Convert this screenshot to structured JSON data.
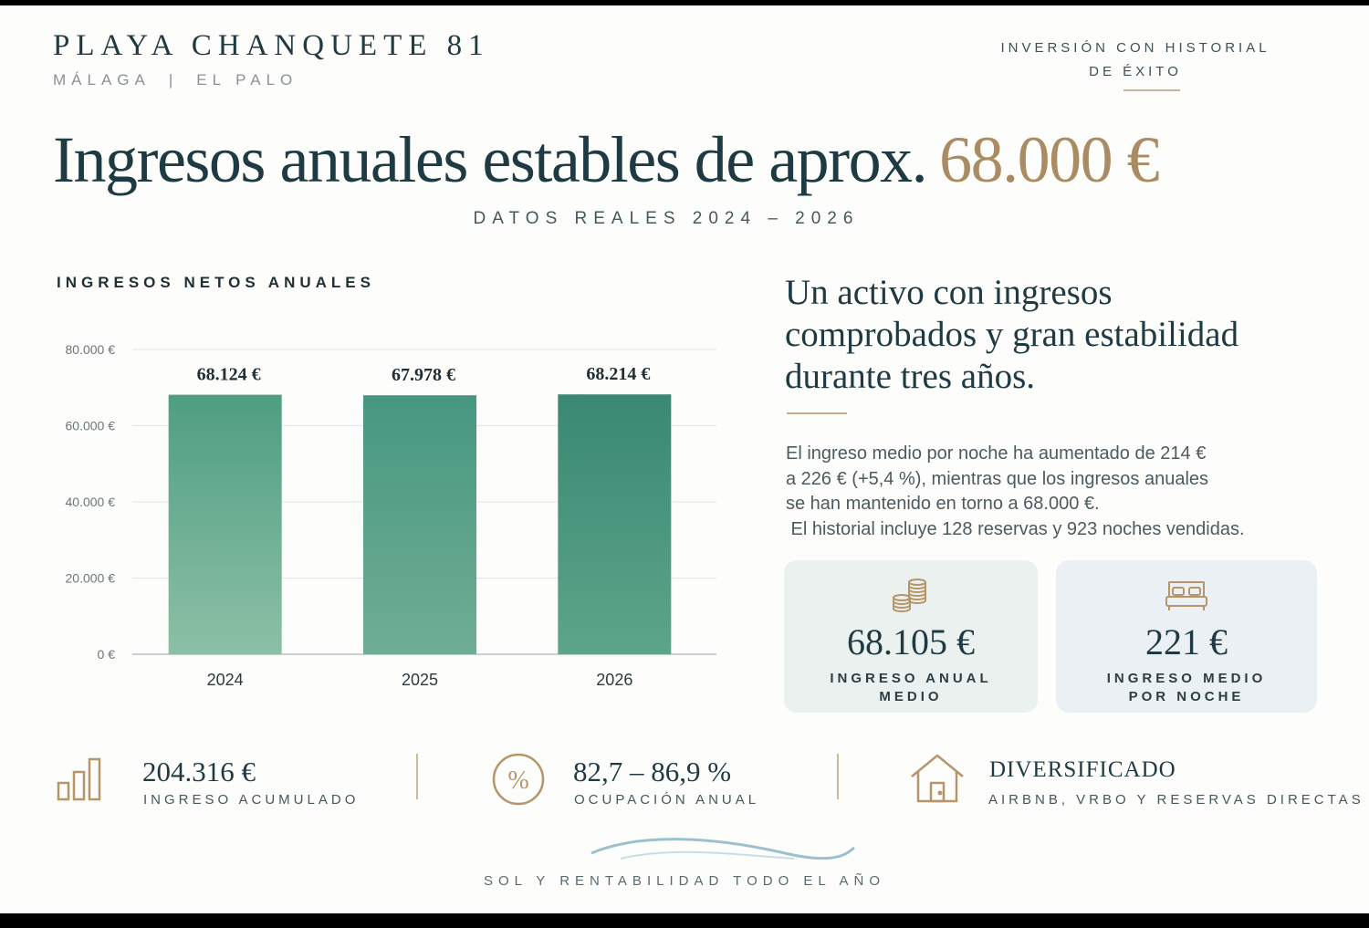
{
  "header": {
    "brand_title": "PLAYA CHANQUETE 81",
    "city": "MÁLAGA",
    "separator": "|",
    "district": "EL PALO",
    "tagline_line1": "INVERSIÓN CON HISTORIAL",
    "tagline_line2": "DE ÉXITO"
  },
  "headline": {
    "text": "Ingresos anuales estables de aprox.",
    "amount": "68.000 €",
    "subtitle": "DATOS REALES 2024 – 2026"
  },
  "chart_title": "INGRESOS NETOS ANUALES",
  "chart_data": {
    "type": "bar",
    "title": "INGRESOS NETOS ANUALES",
    "categories": [
      "2024",
      "2025",
      "2026"
    ],
    "values": [
      68124,
      67978,
      68214
    ],
    "data_labels": [
      "68.124 €",
      "67.978 €",
      "68.214 €"
    ],
    "ylim": [
      0,
      80000
    ],
    "yticks": [
      0,
      20000,
      40000,
      60000,
      80000
    ],
    "ytick_labels": [
      "0 €",
      "20.000 €",
      "40.000 €",
      "60.000 €",
      "80.000 €"
    ],
    "grid": true,
    "colors": [
      "#5fa58a",
      "#4f9a82",
      "#3f8c76"
    ]
  },
  "side": {
    "heading_lines": [
      "Un activo con ingresos",
      "comprobados y gran estabilidad",
      "durante tres años."
    ],
    "body_lines": [
      "El ingreso medio por noche ha aumentado de 214 €",
      "a 226 € (+5,4 %), mientras que los ingresos anuales",
      "se han mantenido en torno a 68.000 €.",
      " El historial incluye 128 reservas y 923 noches vendidas."
    ]
  },
  "cards": [
    {
      "icon": "coins-icon",
      "value": "68.105 €",
      "label_line1": "INGRESO ANUAL",
      "label_line2": "MEDIO"
    },
    {
      "icon": "bed-icon",
      "value": "221 €",
      "label_line1": "INGRESO MEDIO",
      "label_line2": "POR NOCHE"
    }
  ],
  "stats": [
    {
      "icon": "bar-chart-icon",
      "value": "204.316 €",
      "label": "INGRESO ACUMULADO"
    },
    {
      "icon": "percent-icon",
      "value": "82,7 – 86,9 %",
      "label": "OCUPACIÓN ANUAL"
    },
    {
      "icon": "house-icon",
      "value": "DIVERSIFICADO",
      "label": "AIRBNB, VRBO Y RESERVAS DIRECTAS"
    }
  ],
  "footer": {
    "text": "SOL Y RENTABILIDAD TODO EL AÑO"
  },
  "colors": {
    "accent_gold": "#a98c63",
    "navy": "#1e3a42",
    "green": "#4f9a82"
  }
}
